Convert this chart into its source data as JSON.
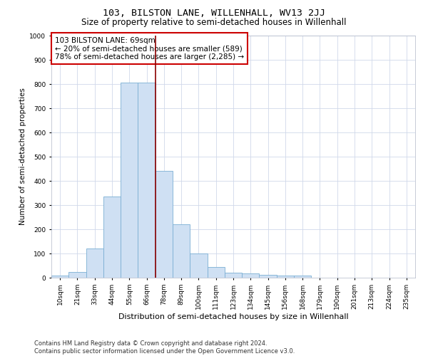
{
  "title": "103, BILSTON LANE, WILLENHALL, WV13 2JJ",
  "subtitle": "Size of property relative to semi-detached houses in Willenhall",
  "xlabel": "Distribution of semi-detached houses by size in Willenhall",
  "ylabel": "Number of semi-detached properties",
  "footer": "Contains HM Land Registry data © Crown copyright and database right 2024.\nContains public sector information licensed under the Open Government Licence v3.0.",
  "bin_labels": [
    "10sqm",
    "21sqm",
    "33sqm",
    "44sqm",
    "55sqm",
    "66sqm",
    "78sqm",
    "89sqm",
    "100sqm",
    "111sqm",
    "123sqm",
    "134sqm",
    "145sqm",
    "156sqm",
    "168sqm",
    "179sqm",
    "190sqm",
    "201sqm",
    "213sqm",
    "224sqm",
    "235sqm"
  ],
  "bar_values": [
    10,
    25,
    120,
    335,
    805,
    805,
    440,
    220,
    100,
    45,
    22,
    18,
    12,
    8,
    8,
    0,
    0,
    0,
    0,
    0,
    0
  ],
  "bar_color": "#cfe0f3",
  "bar_edge_color": "#7bafd4",
  "vline_x": 5.5,
  "vline_color": "#8B0000",
  "annotation_text": "103 BILSTON LANE: 69sqm\n← 20% of semi-detached houses are smaller (589)\n78% of semi-detached houses are larger (2,285) →",
  "annotation_box_color": "#ffffff",
  "annotation_box_edge": "#cc0000",
  "ylim": [
    0,
    1000
  ],
  "yticks": [
    0,
    100,
    200,
    300,
    400,
    500,
    600,
    700,
    800,
    900,
    1000
  ],
  "grid_color": "#d0d8ea",
  "bg_color": "#ffffff",
  "title_fontsize": 9.5,
  "subtitle_fontsize": 8.5,
  "ylabel_fontsize": 7.5,
  "xlabel_fontsize": 8,
  "tick_fontsize": 6.5,
  "annotation_fontsize": 7.5,
  "footer_fontsize": 6
}
